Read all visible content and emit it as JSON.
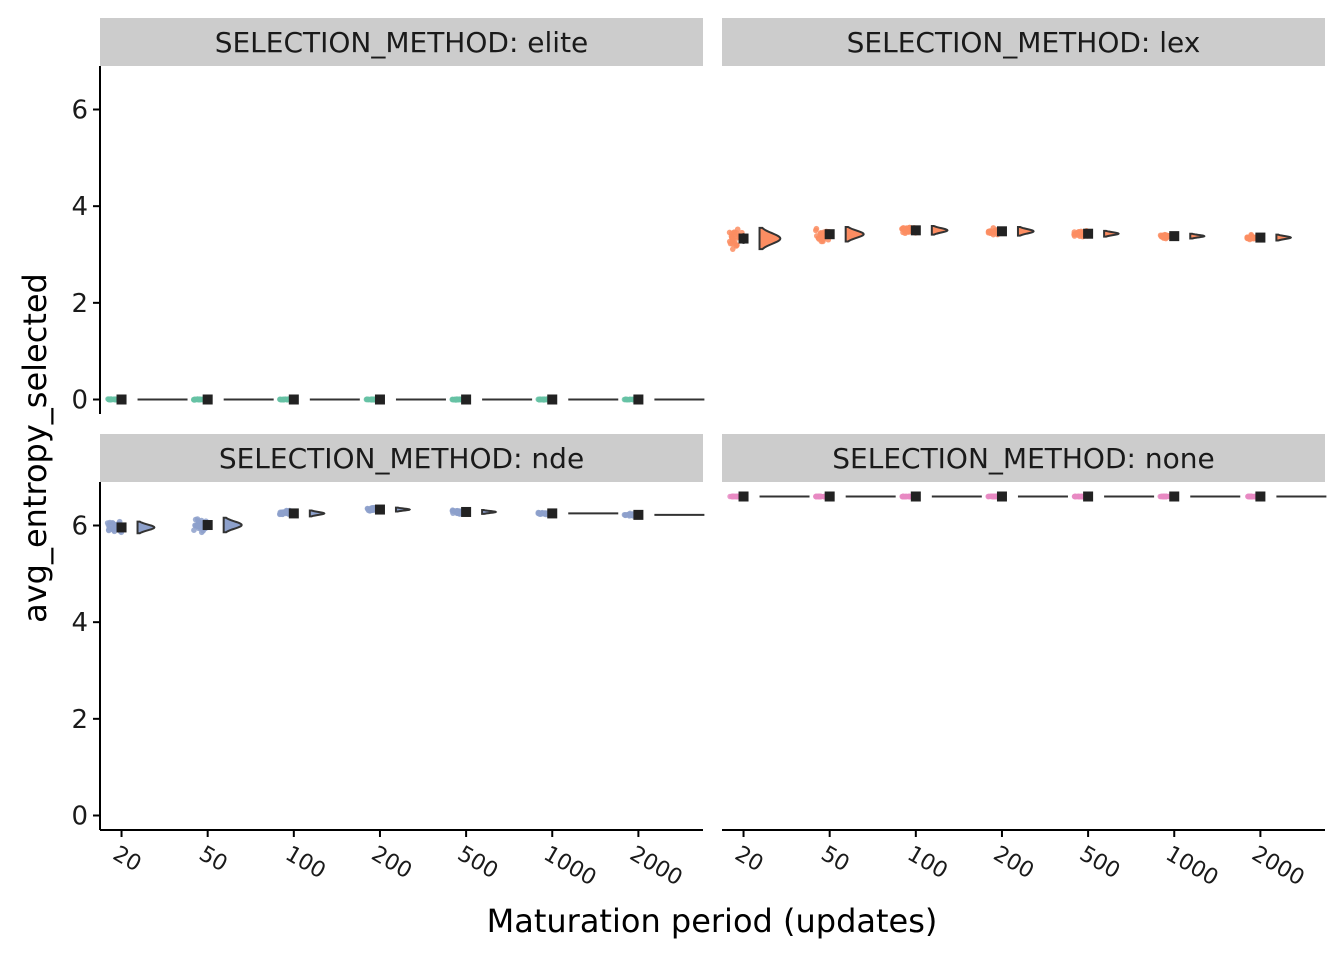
{
  "chart_data": {
    "type": "raincloud",
    "xlabel": "Maturation period (updates)",
    "ylabel": "avg_entropy_selected",
    "facet_label_prefix": "SELECTION_METHOD: ",
    "categories": [
      "20",
      "50",
      "100",
      "200",
      "500",
      "1000",
      "2000"
    ],
    "y_ticks": [
      0,
      2,
      4,
      6
    ],
    "ylim": [
      -0.3,
      6.9
    ],
    "grid": false,
    "legend": "none",
    "panels": [
      {
        "method": "elite",
        "color": "#66C2A5",
        "medians": [
          0,
          0,
          0,
          0,
          0,
          0,
          0
        ],
        "spreads": [
          0.01,
          0.01,
          0.01,
          0.01,
          0.01,
          0.01,
          0.01
        ]
      },
      {
        "method": "lex",
        "color": "#FC8D62",
        "medians": [
          3.33,
          3.42,
          3.5,
          3.48,
          3.43,
          3.38,
          3.35
        ],
        "spreads": [
          0.22,
          0.15,
          0.09,
          0.09,
          0.06,
          0.05,
          0.06
        ]
      },
      {
        "method": "nde",
        "color": "#8DA0CB",
        "medians": [
          5.96,
          6.01,
          6.25,
          6.33,
          6.28,
          6.25,
          6.22
        ],
        "spreads": [
          0.12,
          0.15,
          0.06,
          0.04,
          0.04,
          0.03,
          0.03
        ]
      },
      {
        "method": "none",
        "color": "#E78AC3",
        "medians": [
          6.6,
          6.6,
          6.6,
          6.6,
          6.6,
          6.6,
          6.6
        ],
        "spreads": [
          0.005,
          0.005,
          0.005,
          0.005,
          0.005,
          0.005,
          0.005
        ]
      }
    ]
  }
}
